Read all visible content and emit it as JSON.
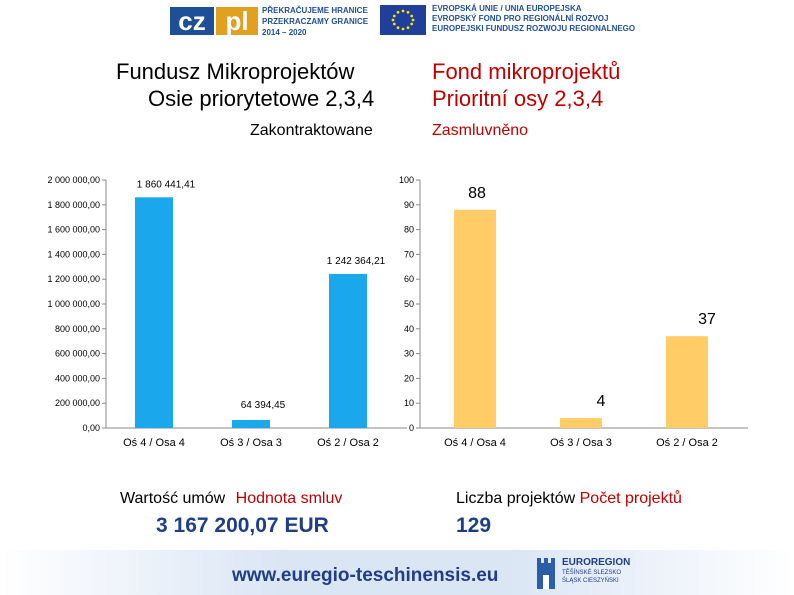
{
  "header": {
    "czpl_logo": "czpl",
    "czpl_lines": [
      "PŘEKRAČUJEME HRANICE",
      "PRZEKRACZAMY GRANICE",
      "2014 – 2020"
    ],
    "eu_lines": [
      "EVROPSKÁ UNIE / UNIA EUROPEJSKA",
      "EVROPSKÝ FOND PRO REGIONÁLNÍ ROZVOJ",
      "EUROPEJSKI FUNDUSZ ROZWOJU REGIONALNEGO"
    ]
  },
  "title": {
    "pl_line1": "Fundusz Mikroprojektów",
    "pl_line2": "Osie priorytetowe 2,3,4",
    "cz_line1": "Fond mikroprojektů",
    "cz_line2": "Prioritní osy 2,3,4",
    "sub_pl": "Zakontraktowane",
    "sub_cz": "Zasmluvněno"
  },
  "colors": {
    "left_bar": "#1aa7ec",
    "right_bar": "#ffcc66",
    "accent_red": "#c00000",
    "accent_blue": "#1f3e8a"
  },
  "chart_data": [
    {
      "type": "bar",
      "categories": [
        "Oś 4 / Osa 4",
        "Oś 3 / Osa 3",
        "Oś 2 / Osa 2"
      ],
      "values": [
        1860441.41,
        64394.45,
        1242364.21
      ],
      "value_labels": [
        "1 860 441,41",
        "64 394,45",
        "1 242 364,21"
      ],
      "ylim": [
        0,
        2000000
      ],
      "yticks": [
        0,
        200000,
        400000,
        600000,
        800000,
        1000000,
        1200000,
        1400000,
        1600000,
        1800000,
        2000000
      ],
      "ytick_labels": [
        "0,00",
        "200 000,00",
        "400 000,00",
        "600 000,00",
        "800 000,00",
        "1 000 000,00",
        "1 200 000,00",
        "1 400 000,00",
        "1 600 000,00",
        "1 800 000,00",
        "2 000 000,00"
      ],
      "grid": false
    },
    {
      "type": "bar",
      "categories": [
        "Oś 4 / Osa 4",
        "Oś 3 / Osa 3",
        "Oś 2 / Osa 2"
      ],
      "values": [
        88,
        4,
        37
      ],
      "value_labels": [
        "88",
        "4",
        "37"
      ],
      "ylim": [
        0,
        100
      ],
      "yticks": [
        0,
        10,
        20,
        30,
        40,
        50,
        60,
        70,
        80,
        90,
        100
      ],
      "ytick_labels": [
        "0",
        "10",
        "20",
        "30",
        "40",
        "50",
        "60",
        "70",
        "80",
        "90",
        "100"
      ],
      "grid": false
    }
  ],
  "totals": {
    "left_label_pl": "Wartość umów",
    "left_label_cz": "Hodnota smluv",
    "left_value": "3 167 200,07 EUR",
    "right_label_pl": "Liczba projektów",
    "right_label_cz": "Počet projektů",
    "right_value": "129"
  },
  "footer": {
    "url": "www.euregio-teschinensis.eu",
    "euroregion_lines": [
      "EUROREGION",
      "TĚŠÍNSKÉ SLEZSKO",
      "ŚLĄSK CIESZYŃSKI"
    ]
  }
}
